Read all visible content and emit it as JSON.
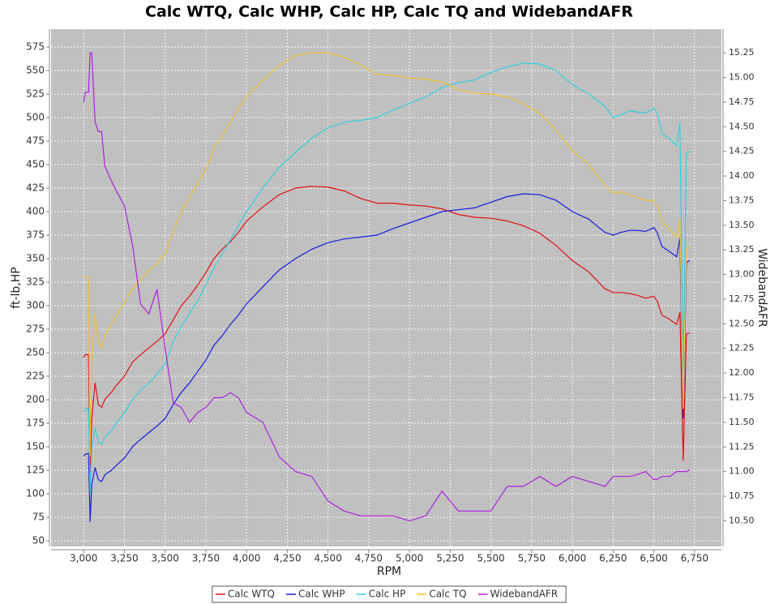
{
  "chart_data": {
    "type": "line",
    "title": "Calc WTQ, Calc WHP, Calc HP, Calc TQ and WidebandAFR",
    "xlabel": "RPM",
    "ylabel": "ft-lb,HP",
    "y2label": "WidebandAFR",
    "grid": true,
    "legend": "bottom",
    "plot_background": "#c0c0c0",
    "xlim": [
      2800,
      6915
    ],
    "ylim": [
      44,
      594
    ],
    "y2lim": [
      10.24,
      15.49
    ],
    "xticks": [
      {
        "value": 3000,
        "label": "3,000"
      },
      {
        "value": 3250,
        "label": "3,250"
      },
      {
        "value": 3500,
        "label": "3,500"
      },
      {
        "value": 3750,
        "label": "3,750"
      },
      {
        "value": 4000,
        "label": "4,000"
      },
      {
        "value": 4250,
        "label": "4,250"
      },
      {
        "value": 4500,
        "label": "4,500"
      },
      {
        "value": 4750,
        "label": "4,750"
      },
      {
        "value": 5000,
        "label": "5,000"
      },
      {
        "value": 5250,
        "label": "5,250"
      },
      {
        "value": 5500,
        "label": "5,500"
      },
      {
        "value": 5750,
        "label": "5,750"
      },
      {
        "value": 6000,
        "label": "6,000"
      },
      {
        "value": 6250,
        "label": "6,250"
      },
      {
        "value": 6500,
        "label": "6,500"
      },
      {
        "value": 6750,
        "label": "6,750"
      }
    ],
    "yticks": [
      50,
      75,
      100,
      125,
      150,
      175,
      200,
      225,
      250,
      275,
      300,
      325,
      350,
      375,
      400,
      425,
      450,
      475,
      500,
      525,
      550,
      575
    ],
    "y2ticks": [
      {
        "value": 10.5,
        "label": "10.50"
      },
      {
        "value": 10.75,
        "label": "10.75"
      },
      {
        "value": 11,
        "label": "11.00"
      },
      {
        "value": 11.25,
        "label": "11.25"
      },
      {
        "value": 11.5,
        "label": "11.50"
      },
      {
        "value": 11.75,
        "label": "11.75"
      },
      {
        "value": 12,
        "label": "12.00"
      },
      {
        "value": 12.25,
        "label": "12.25"
      },
      {
        "value": 12.5,
        "label": "12.50"
      },
      {
        "value": 12.75,
        "label": "12.75"
      },
      {
        "value": 13,
        "label": "13.00"
      },
      {
        "value": 13.25,
        "label": "13.25"
      },
      {
        "value": 13.5,
        "label": "13.50"
      },
      {
        "value": 13.75,
        "label": "13.75"
      },
      {
        "value": 14,
        "label": "14.00"
      },
      {
        "value": 14.25,
        "label": "14.25"
      },
      {
        "value": 14.5,
        "label": "14.50"
      },
      {
        "value": 14.75,
        "label": "14.75"
      },
      {
        "value": 15,
        "label": "15.00"
      },
      {
        "value": 15.25,
        "label": "15.25"
      }
    ],
    "x": [
      3000,
      3010,
      3030,
      3040,
      3050,
      3070,
      3090,
      3110,
      3130,
      3170,
      3200,
      3250,
      3300,
      3350,
      3400,
      3450,
      3500,
      3550,
      3600,
      3650,
      3700,
      3750,
      3800,
      3850,
      3900,
      3950,
      4000,
      4100,
      4200,
      4300,
      4400,
      4500,
      4600,
      4700,
      4800,
      4900,
      5000,
      5100,
      5200,
      5300,
      5400,
      5500,
      5600,
      5700,
      5800,
      5900,
      6000,
      6100,
      6200,
      6250,
      6300,
      6350,
      6400,
      6450,
      6500,
      6520,
      6550,
      6600,
      6640,
      6660,
      6680,
      6700,
      6720
    ],
    "series": [
      {
        "name": "Calc WTQ",
        "color": "#e01010",
        "values": [
          245,
          248,
          248,
          120,
          180,
          218,
          195,
          192,
          200,
          208,
          215,
          225,
          240,
          248,
          255,
          262,
          270,
          285,
          300,
          310,
          322,
          335,
          350,
          360,
          368,
          378,
          390,
          405,
          418,
          425,
          427,
          426,
          422,
          414,
          409,
          409,
          407,
          406,
          403,
          397,
          394,
          393,
          390,
          385,
          377,
          364,
          348,
          336,
          318,
          314,
          314,
          313,
          311,
          308,
          310,
          305,
          290,
          285,
          280,
          293,
          135,
          270,
          271
        ]
      },
      {
        "name": "Calc WHP",
        "color": "#1a1ae0",
        "values": [
          140,
          142,
          143,
          70,
          110,
          128,
          115,
          113,
          120,
          125,
          130,
          138,
          150,
          158,
          165,
          172,
          180,
          195,
          208,
          218,
          230,
          242,
          258,
          268,
          280,
          290,
          302,
          320,
          338,
          350,
          360,
          367,
          371,
          373,
          375,
          382,
          388,
          394,
          400,
          402,
          404,
          410,
          416,
          419,
          418,
          412,
          400,
          392,
          378,
          375,
          378,
          380,
          380,
          379,
          383,
          378,
          363,
          357,
          352,
          372,
          180,
          346,
          348
        ]
      },
      {
        "name": "Calc HP",
        "color": "#30d0e0",
        "values": [
          187,
          190,
          191,
          100,
          150,
          170,
          155,
          153,
          160,
          167,
          175,
          186,
          200,
          210,
          218,
          227,
          238,
          262,
          278,
          292,
          305,
          322,
          340,
          355,
          370,
          385,
          400,
          425,
          447,
          463,
          478,
          489,
          495,
          497,
          500,
          508,
          515,
          522,
          532,
          537,
          540,
          548,
          554,
          558,
          557,
          550,
          535,
          525,
          512,
          500,
          503,
          507,
          506,
          505,
          510,
          505,
          483,
          477,
          470,
          495,
          230,
          462,
          464
        ]
      },
      {
        "name": "Calc TQ",
        "color": "#f0c030",
        "values": [
          330,
          331,
          330,
          140,
          250,
          292,
          262,
          255,
          268,
          280,
          290,
          303,
          318,
          328,
          337,
          345,
          355,
          378,
          400,
          415,
          430,
          445,
          468,
          480,
          495,
          510,
          522,
          540,
          555,
          566,
          569,
          569,
          564,
          556,
          546,
          545,
          542,
          541,
          538,
          530,
          526,
          525,
          522,
          515,
          504,
          487,
          465,
          450,
          428,
          420,
          421,
          418,
          415,
          412,
          412,
          405,
          390,
          380,
          373,
          392,
          190,
          360,
          362
        ]
      },
      {
        "name": "WidebandAFR",
        "color": "#b020e0",
        "axis": "y2",
        "values": [
          14.75,
          14.85,
          14.85,
          15.25,
          15.25,
          14.55,
          14.45,
          14.45,
          14.1,
          13.95,
          13.85,
          13.7,
          13.3,
          12.7,
          12.6,
          12.85,
          12.25,
          11.7,
          11.65,
          11.5,
          11.6,
          11.65,
          11.75,
          11.75,
          11.8,
          11.75,
          11.6,
          11.5,
          11.15,
          11.0,
          10.95,
          10.7,
          10.6,
          10.55,
          10.55,
          10.55,
          10.5,
          10.55,
          10.8,
          10.6,
          10.6,
          10.6,
          10.85,
          10.85,
          10.95,
          10.85,
          10.95,
          10.9,
          10.85,
          10.95,
          10.95,
          10.95,
          10.97,
          11.0,
          10.92,
          10.92,
          10.95,
          10.95,
          11.0,
          11.0,
          11.0,
          11.0,
          11.02
        ]
      }
    ]
  }
}
